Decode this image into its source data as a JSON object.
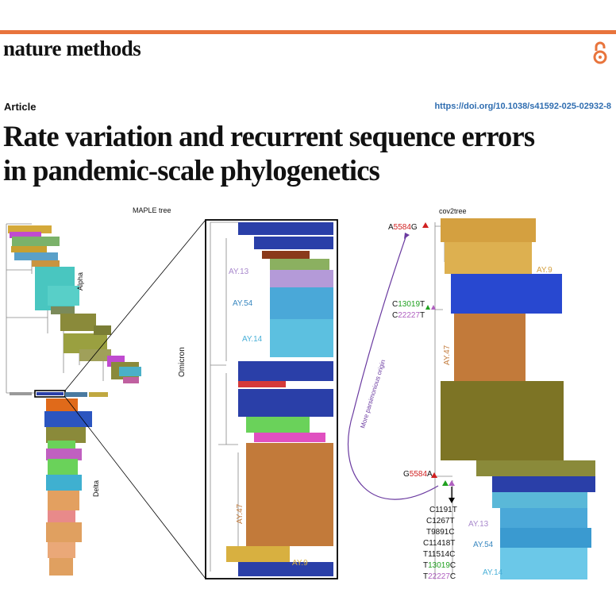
{
  "header": {
    "journal": "nature methods",
    "article_type": "Article",
    "doi": "https://doi.org/10.1038/s41592-025-02932-8",
    "title_line1": "Rate variation and recurrent sequence errors",
    "title_line2": "in pandemic-scale phylogenetics",
    "accent_color": "#e8743c",
    "icon": "open-access-icon"
  },
  "figure": {
    "maple_label": "MAPLE tree",
    "cov2_label": "cov2tree",
    "clades": {
      "alpha": "Alpha",
      "delta": "Delta",
      "omicron": "Omicron"
    },
    "zoom_labels": {
      "ay13": "AY.13",
      "ay54": "AY.54",
      "ay14": "AY.14",
      "ay47": "AY.47",
      "ay9": "AY.9"
    },
    "cov2_clades": {
      "ay9": "AY.9",
      "ay47": "AY.47",
      "ay13": "AY.13",
      "ay54": "AY.54",
      "ay14": "AY.14"
    },
    "mutations": {
      "top_a": "A",
      "top_num": "5584",
      "top_g": "G",
      "c13019_a": "C",
      "c13019_num": "13019",
      "c13019_b": "T",
      "c22227_a": "C",
      "c22227_num": "22227",
      "c22227_b": "T",
      "g5584_a": "G",
      "g5584_num": "5584",
      "g5584_b": "A",
      "list": [
        "C1191T",
        "C1267T",
        "T9891C",
        "C11418T",
        "T11514C"
      ],
      "t13019_a": "T",
      "t13019_num": "13019",
      "t13019_b": "C",
      "t22227_a": "T",
      "t22227_num": "22227",
      "t22227_b": "C"
    },
    "arrow_label": "More parsimonious origin"
  }
}
